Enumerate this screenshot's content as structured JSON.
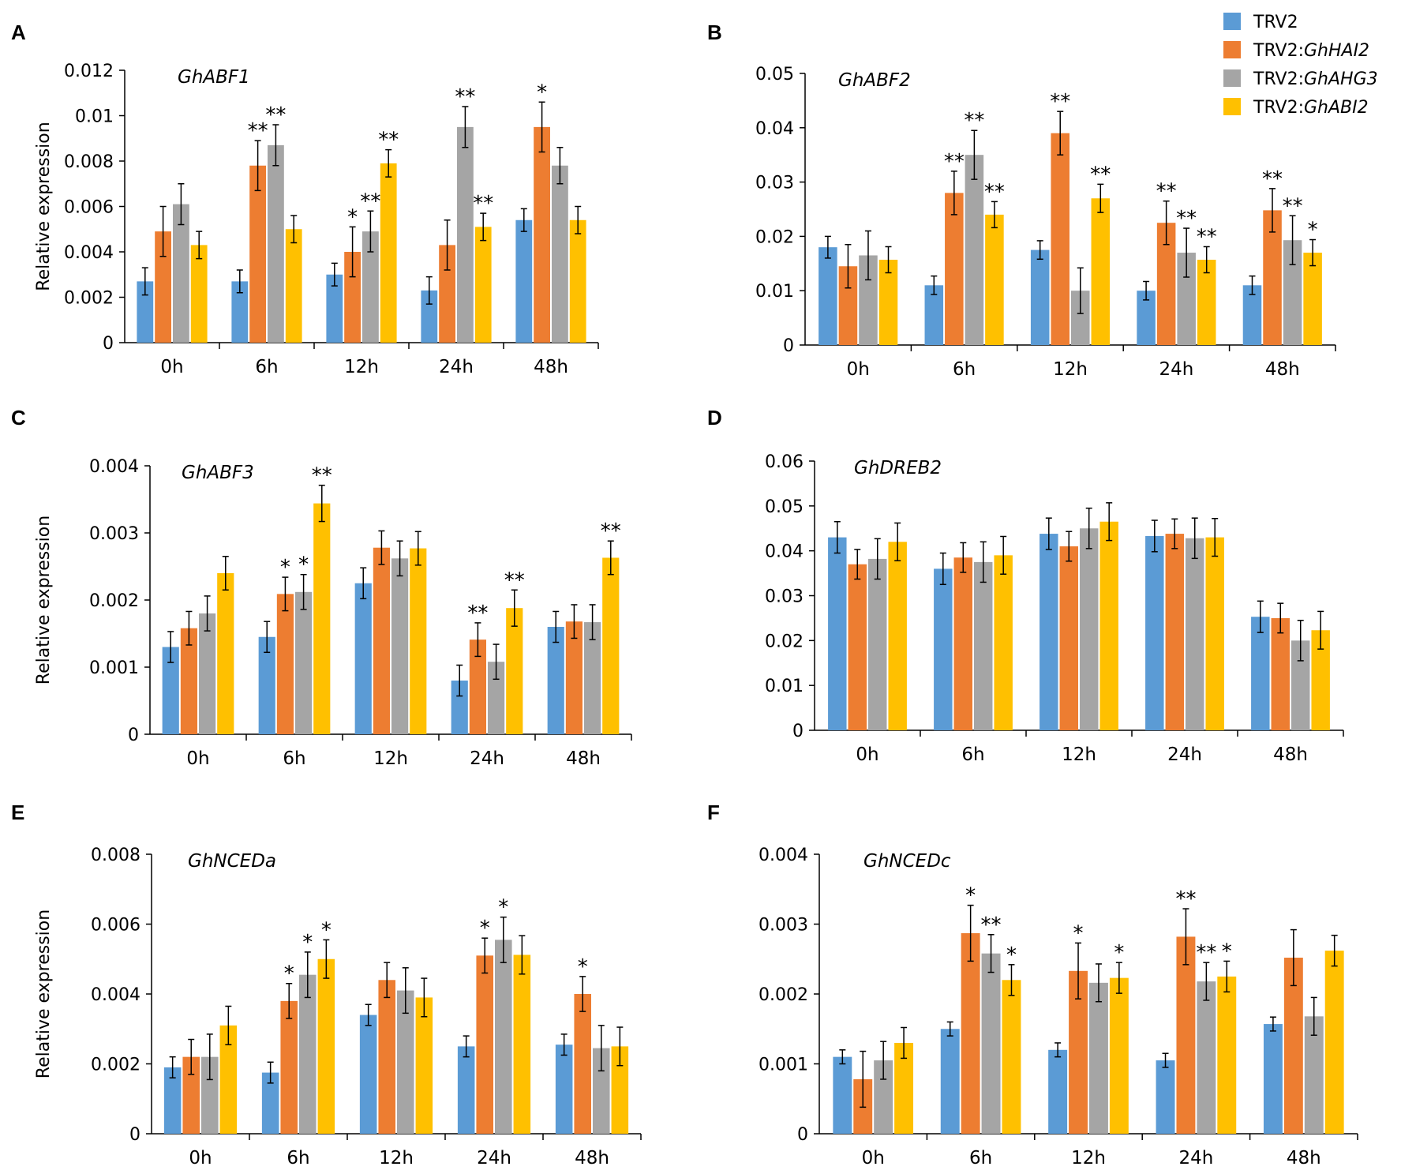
{
  "series_colors": [
    "#5b9bd5",
    "#ed7d31",
    "#a5a5a5",
    "#ffc000"
  ],
  "legend": [
    {
      "prefix": "TRV2",
      "gene": ""
    },
    {
      "prefix": "TRV2:",
      "gene": "GhHAI2"
    },
    {
      "prefix": "TRV2:",
      "gene": "GhAHG3"
    },
    {
      "prefix": "TRV2:",
      "gene": "GhABI2"
    }
  ],
  "chart_data": [
    {
      "type": "bar",
      "panel": "A",
      "title": "GhABF1",
      "ylabel": "Relative expression",
      "categories": [
        "0h",
        "6h",
        "12h",
        "24h",
        "48h"
      ],
      "ylim": [
        0,
        0.012
      ],
      "yticks": [
        "0",
        "0.002",
        "0.004",
        "0.006",
        "0.008",
        "0.01",
        "0.012"
      ],
      "series": [
        {
          "name": "TRV2",
          "values": [
            0.0027,
            0.0027,
            0.003,
            0.0023,
            0.0054
          ],
          "errors": [
            0.0006,
            0.0005,
            0.0005,
            0.0006,
            0.0005
          ],
          "sig": [
            "",
            "",
            "",
            "",
            ""
          ]
        },
        {
          "name": "TRV2:GhHAI2",
          "values": [
            0.0049,
            0.0078,
            0.004,
            0.0043,
            0.0095
          ],
          "errors": [
            0.0011,
            0.0011,
            0.0011,
            0.0011,
            0.0011
          ],
          "sig": [
            "",
            "**",
            "*",
            "",
            "*"
          ]
        },
        {
          "name": "TRV2:GhAHG3",
          "values": [
            0.0061,
            0.0087,
            0.0049,
            0.0095,
            0.0078
          ],
          "errors": [
            0.0009,
            0.0009,
            0.0009,
            0.0009,
            0.0008
          ],
          "sig": [
            "",
            "**",
            "**",
            "**",
            ""
          ]
        },
        {
          "name": "TRV2:GhABI2",
          "values": [
            0.0043,
            0.005,
            0.0079,
            0.0051,
            0.0054
          ],
          "errors": [
            0.0006,
            0.0006,
            0.0006,
            0.0006,
            0.0006
          ],
          "sig": [
            "",
            "",
            "**",
            "**",
            ""
          ]
        }
      ]
    },
    {
      "type": "bar",
      "panel": "B",
      "title": "GhABF2",
      "ylabel": "",
      "categories": [
        "0h",
        "6h",
        "12h",
        "24h",
        "48h"
      ],
      "ylim": [
        0,
        0.05
      ],
      "yticks": [
        "0",
        "0.01",
        "0.02",
        "0.03",
        "0.04",
        "0.05"
      ],
      "series": [
        {
          "name": "TRV2",
          "values": [
            0.018,
            0.011,
            0.0175,
            0.01,
            0.011
          ],
          "errors": [
            0.002,
            0.0017,
            0.0017,
            0.0017,
            0.0017
          ],
          "sig": [
            "",
            "",
            "",
            "",
            ""
          ]
        },
        {
          "name": "TRV2:GhHAI2",
          "values": [
            0.0145,
            0.028,
            0.039,
            0.0225,
            0.0248
          ],
          "errors": [
            0.004,
            0.004,
            0.004,
            0.004,
            0.004
          ],
          "sig": [
            "",
            "**",
            "**",
            "**",
            "**"
          ]
        },
        {
          "name": "TRV2:GhAHG3",
          "values": [
            0.0165,
            0.035,
            0.01,
            0.017,
            0.0193
          ],
          "errors": [
            0.0045,
            0.0045,
            0.0042,
            0.0045,
            0.0045
          ],
          "sig": [
            "",
            "**",
            "",
            "**",
            "**"
          ]
        },
        {
          "name": "TRV2:GhABI2",
          "values": [
            0.0157,
            0.024,
            0.027,
            0.0157,
            0.017
          ],
          "errors": [
            0.0024,
            0.0024,
            0.0026,
            0.0024,
            0.0024
          ],
          "sig": [
            "",
            "**",
            "**",
            "**",
            "*"
          ]
        }
      ]
    },
    {
      "type": "bar",
      "panel": "C",
      "title": "GhABF3",
      "ylabel": "Relative expression",
      "categories": [
        "0h",
        "6h",
        "12h",
        "24h",
        "48h"
      ],
      "ylim": [
        0,
        0.004
      ],
      "yticks": [
        "0",
        "0.001",
        "0.002",
        "0.003",
        "0.004"
      ],
      "series": [
        {
          "name": "TRV2",
          "values": [
            0.0013,
            0.00145,
            0.00225,
            0.0008,
            0.0016
          ],
          "errors": [
            0.00023,
            0.00023,
            0.00023,
            0.00023,
            0.00023
          ],
          "sig": [
            "",
            "",
            "",
            "",
            ""
          ]
        },
        {
          "name": "TRV2:GhHAI2",
          "values": [
            0.00158,
            0.00209,
            0.00278,
            0.00141,
            0.00168
          ],
          "errors": [
            0.00025,
            0.00025,
            0.00025,
            0.00025,
            0.00025
          ],
          "sig": [
            "",
            "*",
            "",
            "**",
            ""
          ]
        },
        {
          "name": "TRV2:GhAHG3",
          "values": [
            0.0018,
            0.00212,
            0.00262,
            0.00108,
            0.00167
          ],
          "errors": [
            0.00026,
            0.00026,
            0.00026,
            0.00026,
            0.00026
          ],
          "sig": [
            "",
            "*",
            "",
            "",
            ""
          ]
        },
        {
          "name": "TRV2:GhABI2",
          "values": [
            0.0024,
            0.00344,
            0.00277,
            0.00188,
            0.00263
          ],
          "errors": [
            0.00025,
            0.00027,
            0.00025,
            0.00027,
            0.00025
          ],
          "sig": [
            "",
            "**",
            "",
            "**",
            "**"
          ]
        }
      ]
    },
    {
      "type": "bar",
      "panel": "D",
      "title": "GhDREB2",
      "ylabel": "",
      "categories": [
        "0h",
        "6h",
        "12h",
        "24h",
        "48h"
      ],
      "ylim": [
        0,
        0.06
      ],
      "yticks": [
        "0",
        "0.01",
        "0.02",
        "0.03",
        "0.04",
        "0.05",
        "0.06"
      ],
      "series": [
        {
          "name": "TRV2",
          "values": [
            0.043,
            0.036,
            0.0438,
            0.0433,
            0.0253
          ],
          "errors": [
            0.0035,
            0.0035,
            0.0035,
            0.0035,
            0.0035
          ],
          "sig": [
            "",
            "",
            "",
            "",
            ""
          ]
        },
        {
          "name": "TRV2:GhHAI2",
          "values": [
            0.037,
            0.0385,
            0.041,
            0.0438,
            0.025
          ],
          "errors": [
            0.0033,
            0.0033,
            0.0033,
            0.0033,
            0.0033
          ],
          "sig": [
            "",
            "",
            "",
            "",
            ""
          ]
        },
        {
          "name": "TRV2:GhAHG3",
          "values": [
            0.0382,
            0.0375,
            0.045,
            0.0428,
            0.02
          ],
          "errors": [
            0.0045,
            0.0045,
            0.0045,
            0.0045,
            0.0045
          ],
          "sig": [
            "",
            "",
            "",
            "",
            ""
          ]
        },
        {
          "name": "TRV2:GhABI2",
          "values": [
            0.042,
            0.039,
            0.0465,
            0.043,
            0.0223
          ],
          "errors": [
            0.0042,
            0.0042,
            0.0042,
            0.0042,
            0.0042
          ],
          "sig": [
            "",
            "",
            "",
            "",
            ""
          ]
        }
      ]
    },
    {
      "type": "bar",
      "panel": "E",
      "title": "GhNCEDa",
      "ylabel": "Relative expression",
      "categories": [
        "0h",
        "6h",
        "12h",
        "24h",
        "48h"
      ],
      "ylim": [
        0,
        0.008
      ],
      "yticks": [
        "0",
        "0.002",
        "0.004",
        "0.006",
        "0.008"
      ],
      "series": [
        {
          "name": "TRV2",
          "values": [
            0.0019,
            0.00175,
            0.0034,
            0.0025,
            0.00255
          ],
          "errors": [
            0.0003,
            0.0003,
            0.0003,
            0.0003,
            0.0003
          ],
          "sig": [
            "",
            "",
            "",
            "",
            ""
          ]
        },
        {
          "name": "TRV2:GhHAI2",
          "values": [
            0.0022,
            0.0038,
            0.0044,
            0.0051,
            0.004
          ],
          "errors": [
            0.0005,
            0.0005,
            0.0005,
            0.0005,
            0.0005
          ],
          "sig": [
            "",
            "*",
            "",
            "*",
            "*"
          ]
        },
        {
          "name": "TRV2:GhAHG3",
          "values": [
            0.0022,
            0.00455,
            0.0041,
            0.00555,
            0.00245
          ],
          "errors": [
            0.00065,
            0.00065,
            0.00065,
            0.00065,
            0.00065
          ],
          "sig": [
            "",
            "*",
            "",
            "*",
            ""
          ]
        },
        {
          "name": "TRV2:GhABI2",
          "values": [
            0.0031,
            0.005,
            0.0039,
            0.00512,
            0.0025
          ],
          "errors": [
            0.00055,
            0.00055,
            0.00055,
            0.00055,
            0.00055
          ],
          "sig": [
            "",
            "*",
            "",
            "",
            ""
          ]
        }
      ]
    },
    {
      "type": "bar",
      "panel": "F",
      "title": "GhNCEDc",
      "ylabel": "",
      "categories": [
        "0h",
        "6h",
        "12h",
        "24h",
        "48h"
      ],
      "ylim": [
        0,
        0.004
      ],
      "yticks": [
        "0",
        "0.001",
        "0.002",
        "0.003",
        "0.004"
      ],
      "series": [
        {
          "name": "TRV2",
          "values": [
            0.0011,
            0.0015,
            0.0012,
            0.00105,
            0.00157
          ],
          "errors": [
            0.0001,
            0.0001,
            0.0001,
            0.0001,
            0.0001
          ],
          "sig": [
            "",
            "",
            "",
            "",
            ""
          ]
        },
        {
          "name": "TRV2:GhHAI2",
          "values": [
            0.00078,
            0.00287,
            0.00233,
            0.00282,
            0.00252
          ],
          "errors": [
            0.0004,
            0.0004,
            0.0004,
            0.0004,
            0.0004
          ],
          "sig": [
            "",
            "*",
            "*",
            "**",
            ""
          ]
        },
        {
          "name": "TRV2:GhAHG3",
          "values": [
            0.00105,
            0.00258,
            0.00216,
            0.00218,
            0.00168
          ],
          "errors": [
            0.00027,
            0.00027,
            0.00027,
            0.00027,
            0.00027
          ],
          "sig": [
            "",
            "**",
            "",
            "**",
            ""
          ]
        },
        {
          "name": "TRV2:GhABI2",
          "values": [
            0.0013,
            0.0022,
            0.00223,
            0.00225,
            0.00262
          ],
          "errors": [
            0.00022,
            0.00022,
            0.00022,
            0.00022,
            0.00022
          ],
          "sig": [
            "",
            "*",
            "*",
            "*",
            ""
          ]
        }
      ]
    }
  ]
}
